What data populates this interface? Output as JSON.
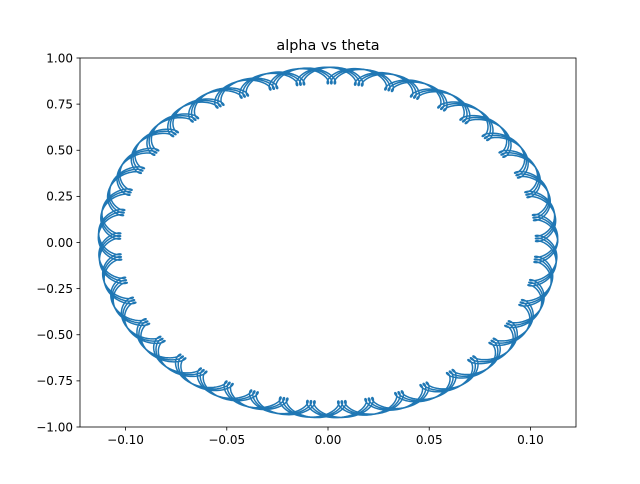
{
  "chart_data": {
    "type": "line",
    "title": "alpha vs theta",
    "xlabel": "",
    "ylabel": "",
    "xlim": [
      -0.1225,
      0.1225
    ],
    "ylim": [
      -1.0,
      1.0
    ],
    "x_ticks": [
      -0.1,
      -0.05,
      0.0,
      0.05,
      0.1
    ],
    "x_tick_labels": [
      "−0.10",
      "−0.05",
      "0.00",
      "0.05",
      "0.10"
    ],
    "y_ticks": [
      -1.0,
      -0.75,
      -0.5,
      -0.25,
      0.0,
      0.25,
      0.5,
      0.75,
      1.0
    ],
    "y_tick_labels": [
      "−1.00",
      "−0.75",
      "−0.50",
      "−0.25",
      "0.00",
      "0.25",
      "0.50",
      "0.75",
      "1.00"
    ],
    "grid": false,
    "legend": "none",
    "line_color": "#1f77b4",
    "series": [
      {
        "description_of_shape": "closed elliptical orbit with small superimposed loops",
        "theta_amplitude": 0.108,
        "alpha_amplitude": 0.905,
        "ripple_theta": 0.0055,
        "ripple_alpha": 0.045,
        "ripple_ratio": 23.3,
        "revolutions": 6
      }
    ]
  }
}
